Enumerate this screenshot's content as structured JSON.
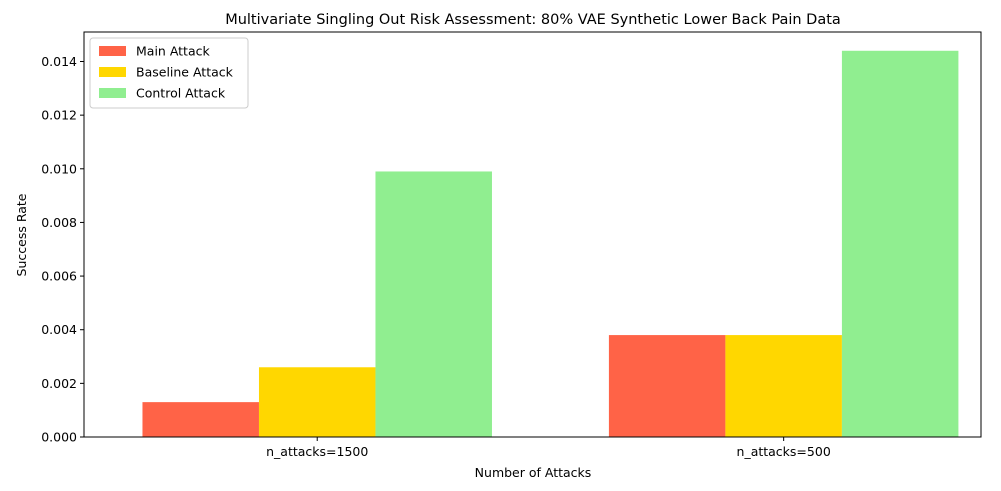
{
  "chart_data": {
    "type": "bar",
    "title": "Multivariate Singling Out Risk Assessment: 80% VAE Synthetic Lower Back Pain Data",
    "xlabel": "Number of Attacks",
    "ylabel": "Success Rate",
    "categories": [
      "n_attacks=1500",
      "n_attacks=500"
    ],
    "series": [
      {
        "name": "Main Attack",
        "color": "#FF6347",
        "values": [
          0.0013,
          0.0038
        ]
      },
      {
        "name": "Baseline Attack",
        "color": "#FFD700",
        "values": [
          0.0026,
          0.0038
        ]
      },
      {
        "name": "Control Attack",
        "color": "#90EE90",
        "values": [
          0.0099,
          0.0144
        ]
      }
    ],
    "ylim": [
      0,
      0.0151
    ],
    "yticks": [
      0.0,
      0.002,
      0.004,
      0.006,
      0.008,
      0.01,
      0.012,
      0.014
    ],
    "ytick_labels": [
      "0.000",
      "0.002",
      "0.004",
      "0.006",
      "0.008",
      "0.010",
      "0.012",
      "0.014"
    ],
    "grid": false,
    "legend_position": "top-left"
  }
}
